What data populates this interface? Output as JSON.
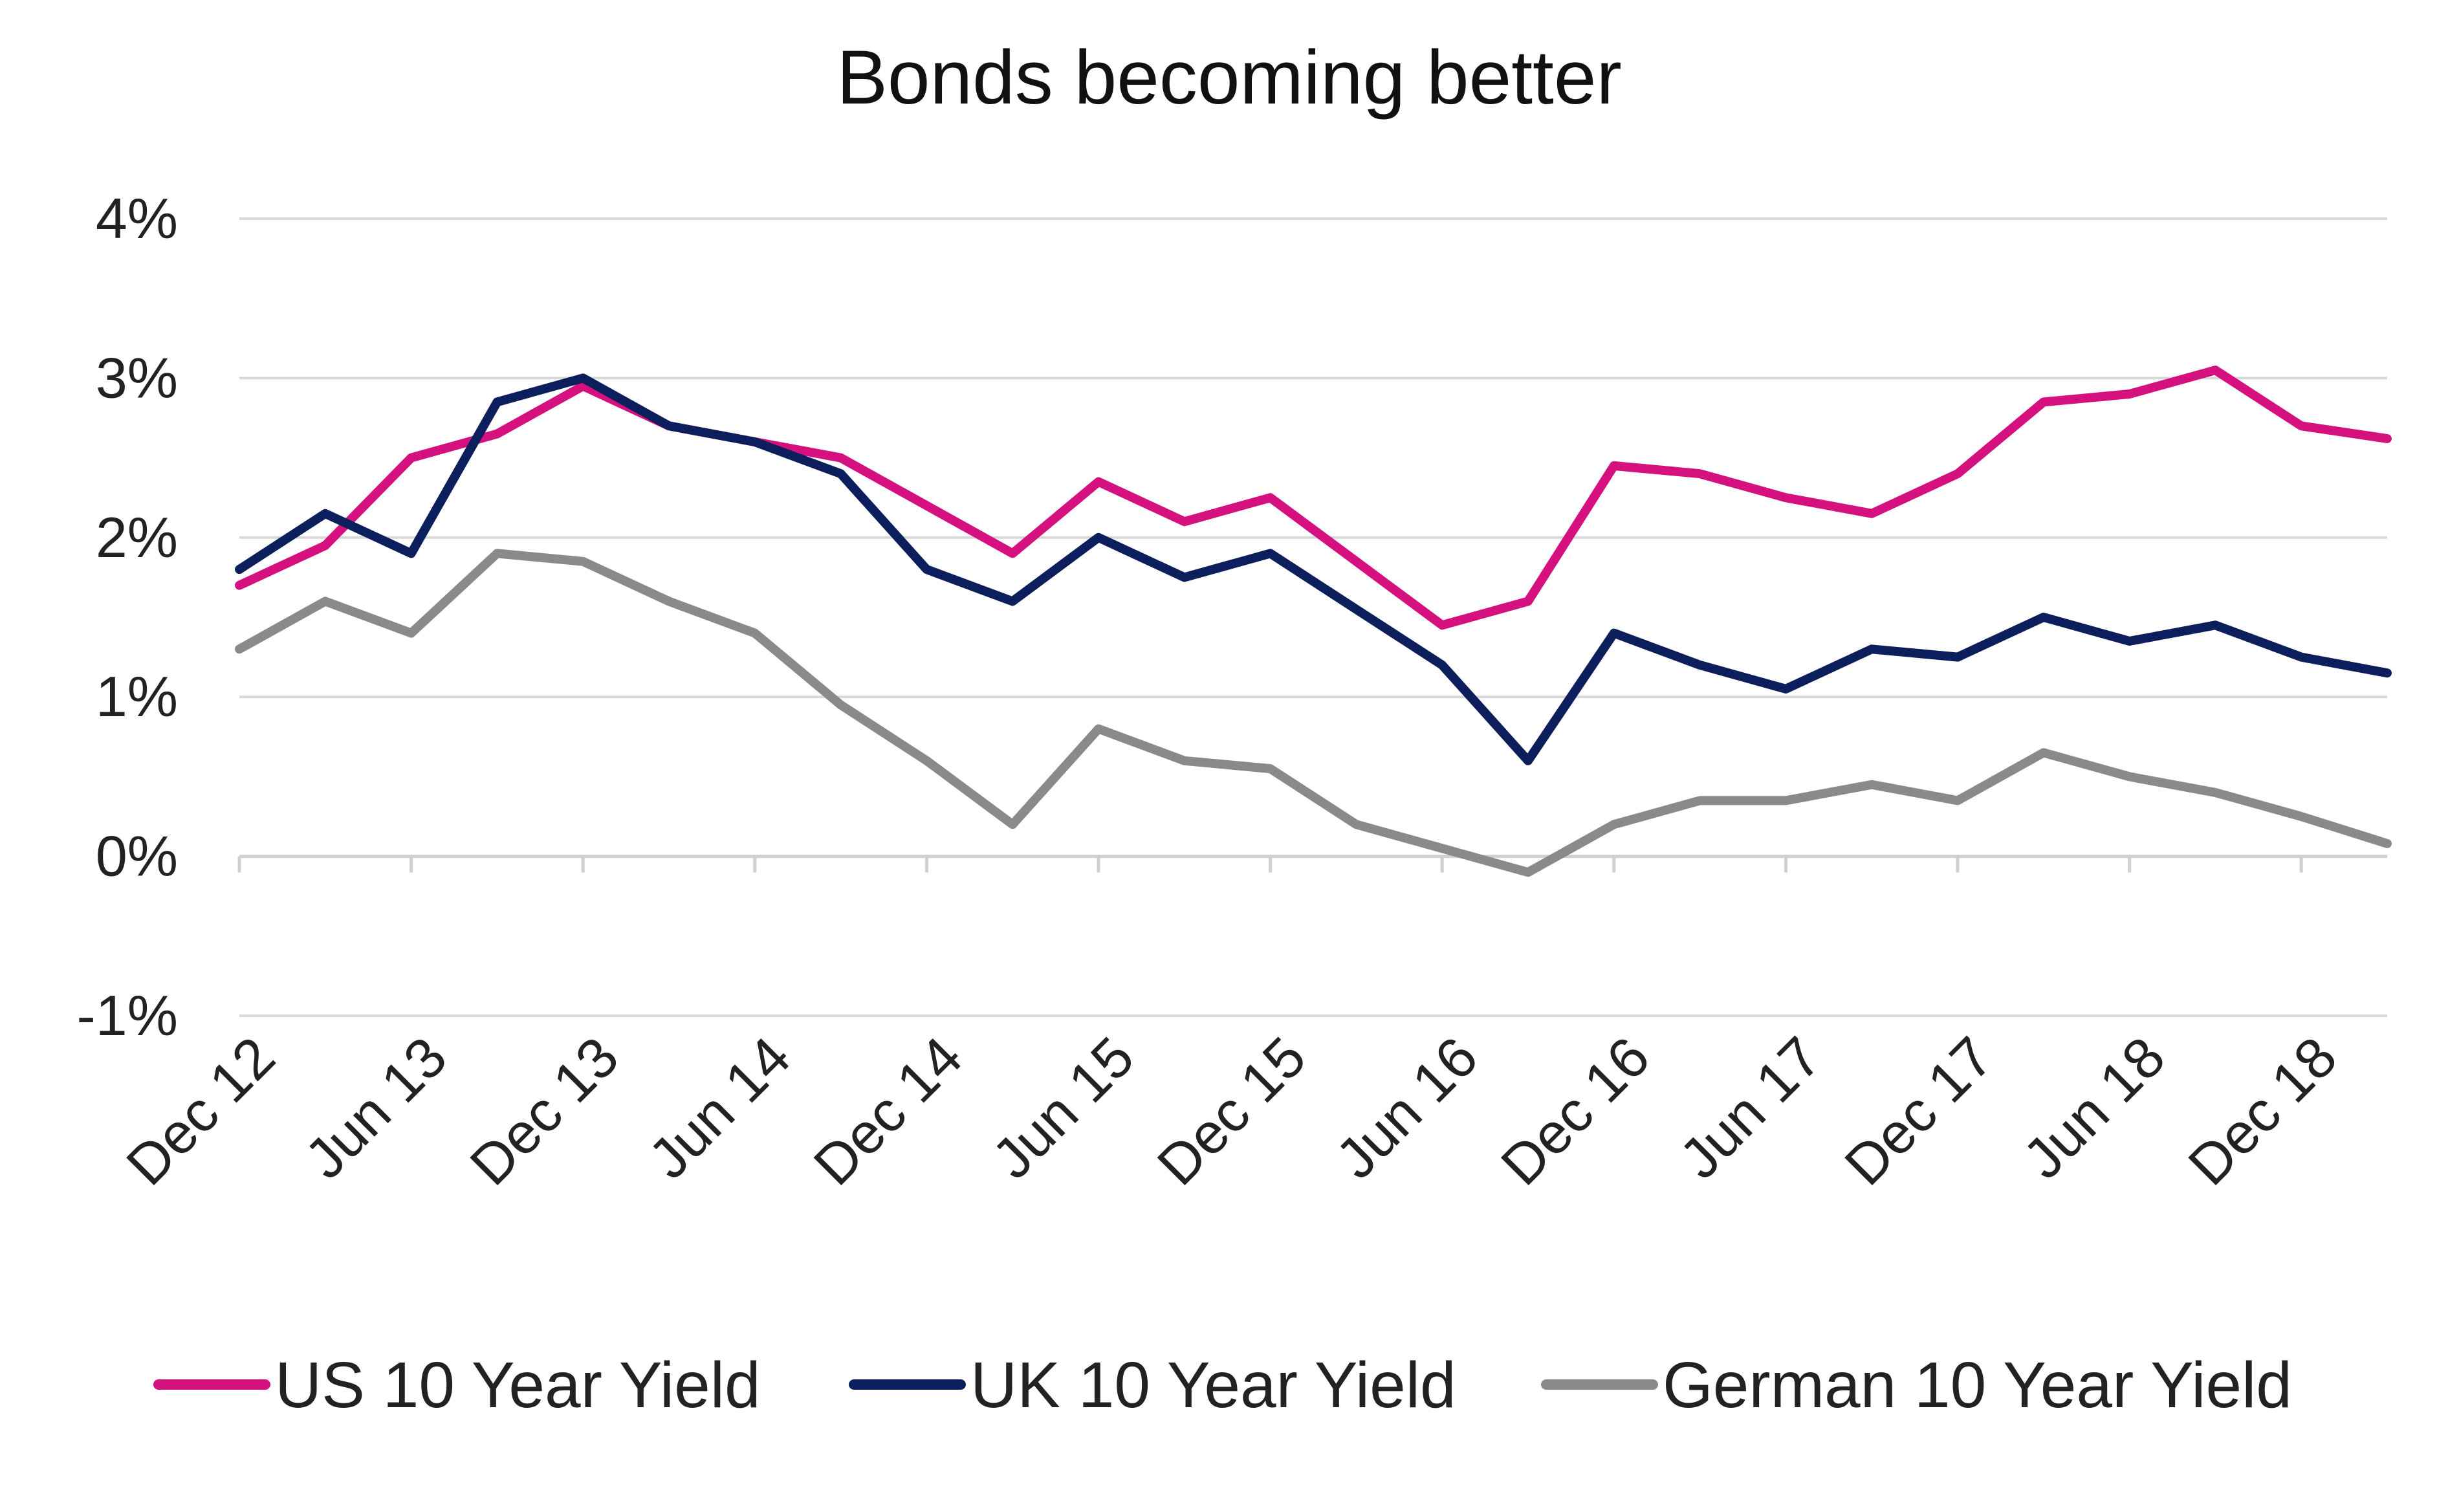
{
  "chart_data": {
    "type": "line",
    "title": "Bonds becoming better",
    "xlabel": "",
    "ylabel": "",
    "ylim": [
      -1,
      4
    ],
    "y_ticks": [
      "4%",
      "3%",
      "2%",
      "1%",
      "0%",
      "-1%"
    ],
    "y_tick_values": [
      4,
      3,
      2,
      1,
      0,
      -1
    ],
    "x_ticks": [
      "Dec 12",
      "Jun 13",
      "Dec 13",
      "Jun 14",
      "Dec 14",
      "Jun 15",
      "Dec 15",
      "Jun 16",
      "Dec 16",
      "Jun 17",
      "Dec 17",
      "Jun 18",
      "Dec 18"
    ],
    "x": [
      "Dec 12",
      "Mar 13",
      "Jun 13",
      "Sep 13",
      "Dec 13",
      "Mar 14",
      "Jun 14",
      "Sep 14",
      "Dec 14",
      "Mar 15",
      "Jun 15",
      "Sep 15",
      "Dec 15",
      "Mar 16",
      "Jun 16",
      "Sep 16",
      "Dec 16",
      "Mar 17",
      "Jun 17",
      "Sep 17",
      "Dec 17",
      "Mar 18",
      "Jun 18",
      "Sep 18",
      "Dec 18",
      "Feb 19"
    ],
    "grid": true,
    "legend_position": "bottom",
    "series": [
      {
        "name": "US 10 Year Yield",
        "color": "#d4117f",
        "values": [
          1.7,
          1.95,
          2.5,
          2.65,
          2.95,
          2.7,
          2.6,
          2.5,
          2.2,
          1.9,
          2.35,
          2.1,
          2.25,
          1.85,
          1.45,
          1.6,
          2.45,
          2.4,
          2.25,
          2.15,
          2.4,
          2.85,
          2.9,
          3.05,
          2.7,
          2.62
        ]
      },
      {
        "name": "UK 10 Year Yield",
        "color": "#0c1f5c",
        "values": [
          1.8,
          2.15,
          1.9,
          2.85,
          3.0,
          2.7,
          2.6,
          2.4,
          1.8,
          1.6,
          2.0,
          1.75,
          1.9,
          1.55,
          1.2,
          0.6,
          1.4,
          1.2,
          1.05,
          1.3,
          1.25,
          1.5,
          1.35,
          1.45,
          1.25,
          1.15
        ]
      },
      {
        "name": "German 10 Year Yield",
        "color": "#8a8a8a",
        "values": [
          1.3,
          1.6,
          1.4,
          1.9,
          1.85,
          1.6,
          1.4,
          0.95,
          0.6,
          0.2,
          0.8,
          0.6,
          0.55,
          0.2,
          0.05,
          -0.1,
          0.2,
          0.35,
          0.35,
          0.45,
          0.35,
          0.65,
          0.5,
          0.4,
          0.25,
          0.08
        ]
      }
    ]
  }
}
